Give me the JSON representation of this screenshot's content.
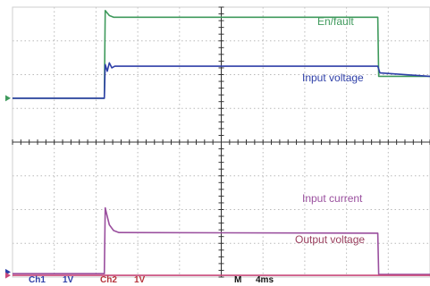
{
  "chart_data": {
    "type": "line",
    "title": "",
    "xlabel": "",
    "ylabel": "",
    "grid": true,
    "x_divisions": 10,
    "y_divisions": 8,
    "xlim": [
      0,
      10
    ],
    "ylim": [
      0,
      8
    ],
    "series": [
      {
        "name": "En/fault",
        "color": "#3f9a5c",
        "x": [
          0,
          2.2,
          2.22,
          2.32,
          2.42,
          8.75,
          8.77,
          10
        ],
        "y": [
          5.3,
          5.3,
          7.9,
          7.75,
          7.7,
          7.7,
          5.95,
          5.95
        ]
      },
      {
        "name": "Input voltage",
        "color": "#2e3fa8",
        "x": [
          0,
          2.2,
          2.22,
          2.27,
          2.32,
          2.38,
          2.45,
          8.75,
          8.8,
          10
        ],
        "y": [
          5.3,
          5.3,
          6.3,
          6.1,
          6.35,
          6.2,
          6.25,
          6.25,
          6.05,
          5.95
        ]
      },
      {
        "name": "Input current",
        "color": "#9a4f9e",
        "x": [
          0,
          2.2,
          2.22,
          2.26,
          2.32,
          2.42,
          2.55,
          8.75,
          8.77,
          10
        ],
        "y": [
          0.1,
          0.1,
          2.05,
          1.85,
          1.55,
          1.38,
          1.32,
          1.3,
          0.08,
          0.08
        ]
      },
      {
        "name": "Output voltage",
        "color": "#c8487a",
        "x": [
          0,
          2.2,
          2.22,
          10
        ],
        "y": [
          0.05,
          0.05,
          0.05,
          0.05
        ]
      }
    ],
    "labels": {
      "en_fault": "En/fault",
      "input_voltage": "Input voltage",
      "input_current": "Input current",
      "output_voltage": "Output voltage"
    },
    "footer": {
      "ch1": "Ch1",
      "ch1_scale": "1V",
      "ch2": "Ch2",
      "ch2_scale": "1V",
      "m": "M",
      "timebase": "4ms"
    },
    "colors": {
      "grid": "#b9b9b9",
      "axis": "#333333",
      "ch1_text": "#2e3fa8",
      "ch2_text": "#b5343c",
      "footer_text": "#111111",
      "marker1": "#3f9a5c",
      "marker2": "#2e3fa8",
      "marker3": "#c8487a"
    }
  }
}
